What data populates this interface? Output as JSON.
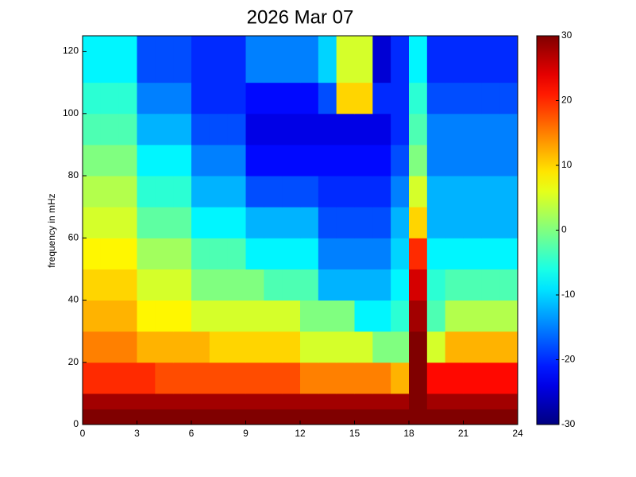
{
  "chart_data": {
    "type": "heatmap",
    "title": "2026 Mar 07",
    "ylabel": "frequency in mHz",
    "x_edges": [
      0,
      1,
      2,
      3,
      4,
      5,
      6,
      7,
      8,
      9,
      10,
      11,
      12,
      13,
      14,
      15,
      16,
      17,
      18,
      19,
      20,
      21,
      22,
      23,
      24
    ],
    "y_edges": [
      0,
      5,
      10,
      20,
      30,
      40,
      50,
      60,
      70,
      80,
      90,
      100,
      110,
      125
    ],
    "z": [
      [
        30,
        30,
        30,
        30,
        30,
        30,
        30,
        30,
        30,
        30,
        30,
        30,
        30,
        30,
        30,
        30,
        30,
        30,
        30,
        30,
        30,
        30,
        30,
        30
      ],
      [
        28,
        28,
        28,
        28,
        28,
        28,
        28,
        28,
        28,
        28,
        28,
        28,
        28,
        28,
        28,
        28,
        28,
        28,
        30,
        28,
        28,
        28,
        28,
        28
      ],
      [
        20,
        20,
        20,
        20,
        18,
        18,
        18,
        18,
        18,
        18,
        18,
        18,
        15,
        15,
        15,
        15,
        15,
        12,
        30,
        22,
        22,
        22,
        22,
        22
      ],
      [
        15,
        15,
        15,
        12,
        12,
        12,
        12,
        10,
        10,
        10,
        10,
        10,
        5,
        5,
        5,
        5,
        0,
        0,
        30,
        5,
        12,
        12,
        12,
        12
      ],
      [
        12,
        12,
        12,
        8,
        8,
        8,
        5,
        5,
        5,
        5,
        5,
        5,
        0,
        0,
        0,
        -8,
        -8,
        -5,
        28,
        -3,
        3,
        3,
        3,
        3
      ],
      [
        10,
        10,
        10,
        5,
        5,
        5,
        0,
        0,
        0,
        0,
        -3,
        -3,
        -3,
        -12,
        -12,
        -12,
        -12,
        -8,
        25,
        -5,
        -3,
        -3,
        -3,
        -3
      ],
      [
        8,
        8,
        8,
        2,
        2,
        2,
        -3,
        -3,
        -3,
        -8,
        -8,
        -8,
        -8,
        -15,
        -15,
        -15,
        -15,
        -10,
        20,
        -8,
        -8,
        -8,
        -8,
        -8
      ],
      [
        5,
        5,
        5,
        -2,
        -2,
        -2,
        -8,
        -8,
        -8,
        -12,
        -12,
        -12,
        -12,
        -18,
        -18,
        -18,
        -18,
        -12,
        10,
        -12,
        -12,
        -12,
        -12,
        -12
      ],
      [
        3,
        3,
        3,
        -5,
        -5,
        -5,
        -12,
        -12,
        -12,
        -18,
        -18,
        -18,
        -18,
        -20,
        -20,
        -20,
        -20,
        -15,
        5,
        -12,
        -12,
        -12,
        -12,
        -12
      ],
      [
        0,
        0,
        0,
        -8,
        -8,
        -8,
        -15,
        -15,
        -15,
        -22,
        -22,
        -22,
        -22,
        -22,
        -22,
        -22,
        -22,
        -18,
        0,
        -15,
        -15,
        -15,
        -15,
        -15
      ],
      [
        -3,
        -3,
        -3,
        -12,
        -12,
        -12,
        -18,
        -18,
        -18,
        -24,
        -24,
        -24,
        -24,
        -24,
        -24,
        -24,
        -24,
        -20,
        -3,
        -15,
        -15,
        -15,
        -15,
        -15
      ],
      [
        -5,
        -5,
        -5,
        -15,
        -15,
        -15,
        -20,
        -20,
        -20,
        -22,
        -22,
        -22,
        -22,
        -18,
        10,
        10,
        -20,
        -20,
        -5,
        -18,
        -18,
        -18,
        -18,
        -18
      ],
      [
        -8,
        -8,
        -8,
        -18,
        -18,
        -18,
        -20,
        -20,
        -20,
        -15,
        -15,
        -15,
        -15,
        -10,
        5,
        5,
        -25,
        -20,
        -8,
        -20,
        -20,
        -20,
        -20,
        -20
      ]
    ],
    "xlim": [
      0,
      24
    ],
    "xticks": [
      0,
      3,
      6,
      9,
      12,
      15,
      18,
      21,
      24
    ],
    "ylim": [
      0,
      125
    ],
    "yticks": [
      0,
      20,
      40,
      60,
      80,
      100,
      120
    ],
    "zlim": [
      -30,
      30
    ],
    "zticks": [
      -30,
      -20,
      -10,
      0,
      10,
      20,
      30
    ],
    "colormap": "jet"
  }
}
